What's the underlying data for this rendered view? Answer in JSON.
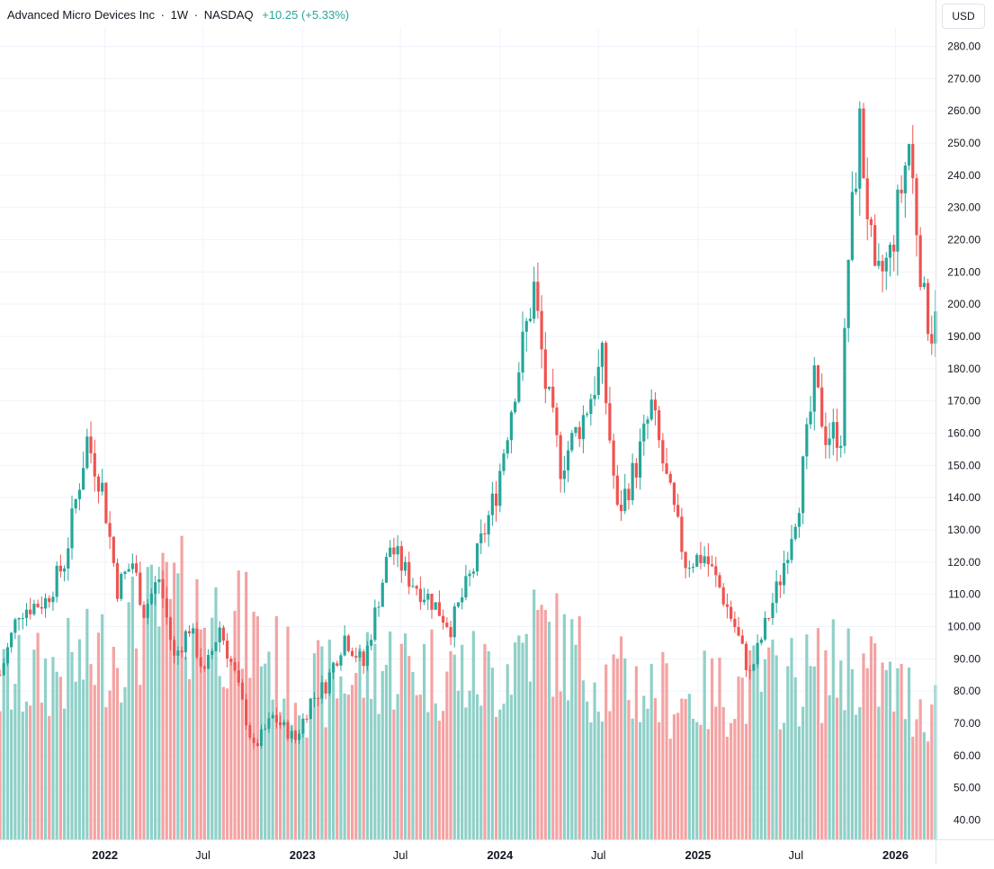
{
  "legend": {
    "symbol_name": "Advanced Micro Devices Inc",
    "interval": "1W",
    "exchange": "NASDAQ",
    "change": "+10.25 (+5.33%)",
    "separator": "·"
  },
  "currency_label": "USD",
  "colors": {
    "up": "#26a69a",
    "down": "#ef5350",
    "up_volume": "#8fd0c8",
    "down_volume": "#f4a3a3",
    "grid": "#f0f3fa",
    "axis_text": "#131722",
    "change_text": "#26a69a"
  },
  "chart_data": {
    "type": "candlestick",
    "title": "Advanced Micro Devices Inc · 1W · NASDAQ",
    "y_axis": {
      "position": "right",
      "unit": "USD",
      "ticks": [
        40,
        50,
        60,
        70,
        80,
        90,
        100,
        110,
        120,
        130,
        140,
        150,
        160,
        170,
        180,
        190,
        200,
        210,
        220,
        230,
        240,
        250,
        260,
        270,
        280
      ],
      "tick_labels": [
        "40.00",
        "50.00",
        "60.00",
        "70.00",
        "80.00",
        "90.00",
        "100.00",
        "110.00",
        "120.00",
        "130.00",
        "140.00",
        "150.00",
        "160.00",
        "170.00",
        "180.00",
        "190.00",
        "200.00",
        "210.00",
        "220.00",
        "230.00",
        "240.00",
        "250.00",
        "260.00",
        "270.00",
        "280.00"
      ],
      "range": [
        34,
        286
      ]
    },
    "x_axis": {
      "labels": [
        {
          "text": "2022",
          "date": "2022-01-01",
          "bold": true
        },
        {
          "text": "Jul",
          "date": "2022-07-01",
          "bold": false
        },
        {
          "text": "2023",
          "date": "2023-01-01",
          "bold": true
        },
        {
          "text": "Jul",
          "date": "2023-07-01",
          "bold": false
        },
        {
          "text": "2024",
          "date": "2024-01-01",
          "bold": true
        },
        {
          "text": "Jul",
          "date": "2024-07-01",
          "bold": false
        },
        {
          "text": "2025",
          "date": "2025-01-01",
          "bold": true
        },
        {
          "text": "Jul",
          "date": "2025-07-01",
          "bold": false
        },
        {
          "text": "2026",
          "date": "2026-01-01",
          "bold": true
        }
      ],
      "range": [
        "2021-06-21",
        "2026-03-16"
      ]
    },
    "grid": true,
    "volume_overlay": true,
    "price_keypoints": [
      [
        "2021-06-21",
        85
      ],
      [
        "2021-07-26",
        105
      ],
      [
        "2021-09-13",
        108
      ],
      [
        "2021-10-18",
        120
      ],
      [
        "2021-11-29",
        158
      ],
      [
        "2021-12-27",
        143
      ],
      [
        "2022-01-24",
        112
      ],
      [
        "2022-02-21",
        120
      ],
      [
        "2022-03-14",
        105
      ],
      [
        "2022-04-11",
        115
      ],
      [
        "2022-05-09",
        90
      ],
      [
        "2022-06-06",
        100
      ],
      [
        "2022-07-04",
        85
      ],
      [
        "2022-08-01",
        100
      ],
      [
        "2022-08-29",
        85
      ],
      [
        "2022-10-03",
        62
      ],
      [
        "2022-11-07",
        72
      ],
      [
        "2022-12-19",
        65
      ],
      [
        "2023-01-16",
        77
      ],
      [
        "2023-02-13",
        82
      ],
      [
        "2023-03-20",
        97
      ],
      [
        "2023-04-24",
        88
      ],
      [
        "2023-06-12",
        125
      ],
      [
        "2023-07-17",
        115
      ],
      [
        "2023-08-28",
        108
      ],
      [
        "2023-10-02",
        100
      ],
      [
        "2023-11-13",
        118
      ],
      [
        "2023-12-25",
        142
      ],
      [
        "2024-01-29",
        175
      ],
      [
        "2024-03-04",
        205
      ],
      [
        "2024-03-25",
        175
      ],
      [
        "2024-04-22",
        150
      ],
      [
        "2024-06-03",
        165
      ],
      [
        "2024-07-08",
        182
      ],
      [
        "2024-08-05",
        135
      ],
      [
        "2024-09-09",
        150
      ],
      [
        "2024-10-07",
        168
      ],
      [
        "2024-11-04",
        145
      ],
      [
        "2024-12-09",
        120
      ],
      [
        "2025-01-13",
        122
      ],
      [
        "2025-02-10",
        112
      ],
      [
        "2025-03-10",
        100
      ],
      [
        "2025-04-07",
        85
      ],
      [
        "2025-05-05",
        100
      ],
      [
        "2025-06-02",
        115
      ],
      [
        "2025-07-07",
        140
      ],
      [
        "2025-08-04",
        175
      ],
      [
        "2025-08-25",
        160
      ],
      [
        "2025-09-22",
        160
      ],
      [
        "2025-10-06",
        215
      ],
      [
        "2025-10-27",
        255
      ],
      [
        "2025-11-24",
        205
      ],
      [
        "2025-12-22",
        215
      ],
      [
        "2026-01-26",
        250
      ],
      [
        "2026-02-23",
        200
      ],
      [
        "2026-03-09",
        192
      ],
      [
        "2026-03-16",
        202
      ]
    ],
    "volume_keypoints": [
      [
        "2021-06-21",
        52
      ],
      [
        "2021-11-29",
        60
      ],
      [
        "2022-05-09",
        80
      ],
      [
        "2022-09-26",
        70
      ],
      [
        "2023-01-02",
        50
      ],
      [
        "2023-06-12",
        60
      ],
      [
        "2023-12-25",
        55
      ],
      [
        "2024-03-04",
        72
      ],
      [
        "2024-07-08",
        55
      ],
      [
        "2024-12-09",
        48
      ],
      [
        "2025-04-07",
        52
      ],
      [
        "2025-08-04",
        56
      ],
      [
        "2025-10-06",
        60
      ],
      [
        "2026-01-05",
        50
      ],
      [
        "2026-03-16",
        45
      ]
    ],
    "volume_scale_max": 100
  }
}
